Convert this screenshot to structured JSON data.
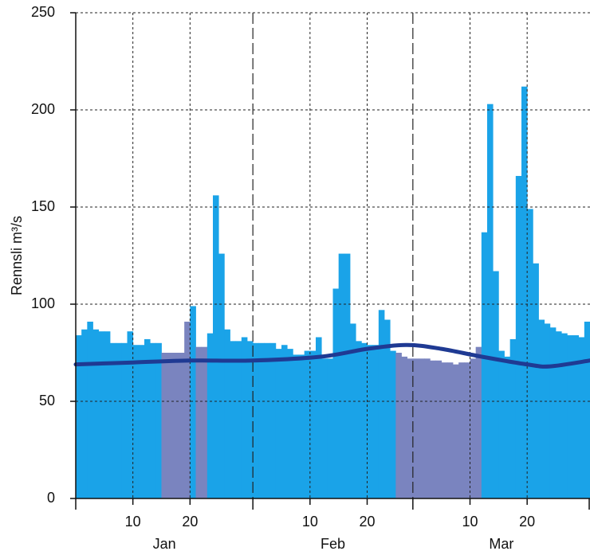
{
  "chart_data": {
    "type": "bar",
    "y_label": "Rennsli  m³/s",
    "x": [
      1,
      2,
      3,
      4,
      5,
      6,
      7,
      8,
      9,
      10,
      11,
      12,
      13,
      14,
      15,
      16,
      17,
      18,
      19,
      20,
      21,
      22,
      23,
      24,
      25,
      26,
      27,
      28,
      29,
      30,
      31,
      32,
      33,
      34,
      35,
      36,
      37,
      38,
      39,
      40,
      41,
      42,
      43,
      44,
      45,
      46,
      47,
      48,
      49,
      50,
      51,
      52,
      53,
      54,
      55,
      56,
      57,
      58,
      59,
      60,
      61,
      62,
      63,
      64,
      65,
      66,
      67,
      68,
      69,
      70,
      71,
      72,
      73,
      74,
      75,
      76,
      77,
      78,
      79,
      80,
      81,
      82,
      83,
      84,
      85,
      86,
      87,
      88,
      89,
      90
    ],
    "values": [
      84,
      87,
      91,
      87,
      86,
      86,
      80,
      80,
      80,
      86,
      79,
      79,
      82,
      80,
      80,
      75,
      75,
      75,
      75,
      91,
      99,
      78,
      78,
      85,
      156,
      126,
      87,
      81,
      81,
      83,
      81,
      80,
      80,
      80,
      80,
      77,
      79,
      77,
      74,
      74,
      76,
      76,
      83,
      72,
      72,
      108,
      126,
      126,
      90,
      81,
      80,
      79,
      79,
      97,
      92,
      76,
      75,
      73,
      72,
      72,
      72,
      72,
      71,
      71,
      70,
      70,
      69,
      70,
      70,
      72,
      78,
      137,
      203,
      117,
      76,
      73,
      82,
      166,
      212,
      149,
      121,
      92,
      90,
      88,
      86,
      85,
      84,
      84,
      83,
      91
    ],
    "colors": [
      "#1aa3e8",
      "#1aa3e8",
      "#1aa3e8",
      "#1aa3e8",
      "#1aa3e8",
      "#1aa3e8",
      "#1aa3e8",
      "#1aa3e8",
      "#1aa3e8",
      "#1aa3e8",
      "#1aa3e8",
      "#1aa3e8",
      "#1aa3e8",
      "#1aa3e8",
      "#1aa3e8",
      "#7a84bf",
      "#7a84bf",
      "#7a84bf",
      "#7a84bf",
      "#7a84bf",
      "#1aa3e8",
      "#7a84bf",
      "#7a84bf",
      "#1aa3e8",
      "#1aa3e8",
      "#1aa3e8",
      "#1aa3e8",
      "#1aa3e8",
      "#1aa3e8",
      "#1aa3e8",
      "#1aa3e8",
      "#1aa3e8",
      "#1aa3e8",
      "#1aa3e8",
      "#1aa3e8",
      "#1aa3e8",
      "#1aa3e8",
      "#1aa3e8",
      "#1aa3e8",
      "#1aa3e8",
      "#1aa3e8",
      "#1aa3e8",
      "#1aa3e8",
      "#1aa3e8",
      "#1aa3e8",
      "#1aa3e8",
      "#1aa3e8",
      "#1aa3e8",
      "#1aa3e8",
      "#1aa3e8",
      "#1aa3e8",
      "#1aa3e8",
      "#1aa3e8",
      "#1aa3e8",
      "#1aa3e8",
      "#1aa3e8",
      "#7a84bf",
      "#7a84bf",
      "#7a84bf",
      "#7a84bf",
      "#7a84bf",
      "#7a84bf",
      "#7a84bf",
      "#7a84bf",
      "#7a84bf",
      "#7a84bf",
      "#7a84bf",
      "#7a84bf",
      "#7a84bf",
      "#7a84bf",
      "#7a84bf",
      "#1aa3e8",
      "#1aa3e8",
      "#1aa3e8",
      "#1aa3e8",
      "#1aa3e8",
      "#1aa3e8",
      "#1aa3e8",
      "#1aa3e8",
      "#1aa3e8",
      "#1aa3e8",
      "#1aa3e8",
      "#1aa3e8",
      "#1aa3e8",
      "#1aa3e8",
      "#1aa3e8",
      "#1aa3e8",
      "#1aa3e8",
      "#1aa3e8",
      "#1aa3e8"
    ],
    "line": {
      "color": "#1f3a93",
      "x": [
        0,
        10,
        20,
        31,
        43,
        51,
        58,
        64,
        71,
        79,
        83,
        90
      ],
      "values": [
        69,
        70,
        71,
        71,
        73,
        77,
        79,
        77,
        73,
        69,
        68,
        71
      ]
    },
    "xlim": [
      0,
      90
    ],
    "xticks": [
      10,
      20,
      {
        "value": 41,
        "label": "10"
      },
      {
        "value": 51,
        "label": "20"
      },
      {
        "value": 69,
        "label": "10"
      },
      {
        "value": 79,
        "label": "20"
      }
    ],
    "month_bounds": [
      0,
      31,
      59,
      90
    ],
    "months": [
      "Jan",
      "Feb",
      "Mar"
    ],
    "ylim": [
      0,
      250
    ],
    "yticks": [
      0,
      50,
      100,
      150,
      200,
      250
    ],
    "grid": true
  }
}
